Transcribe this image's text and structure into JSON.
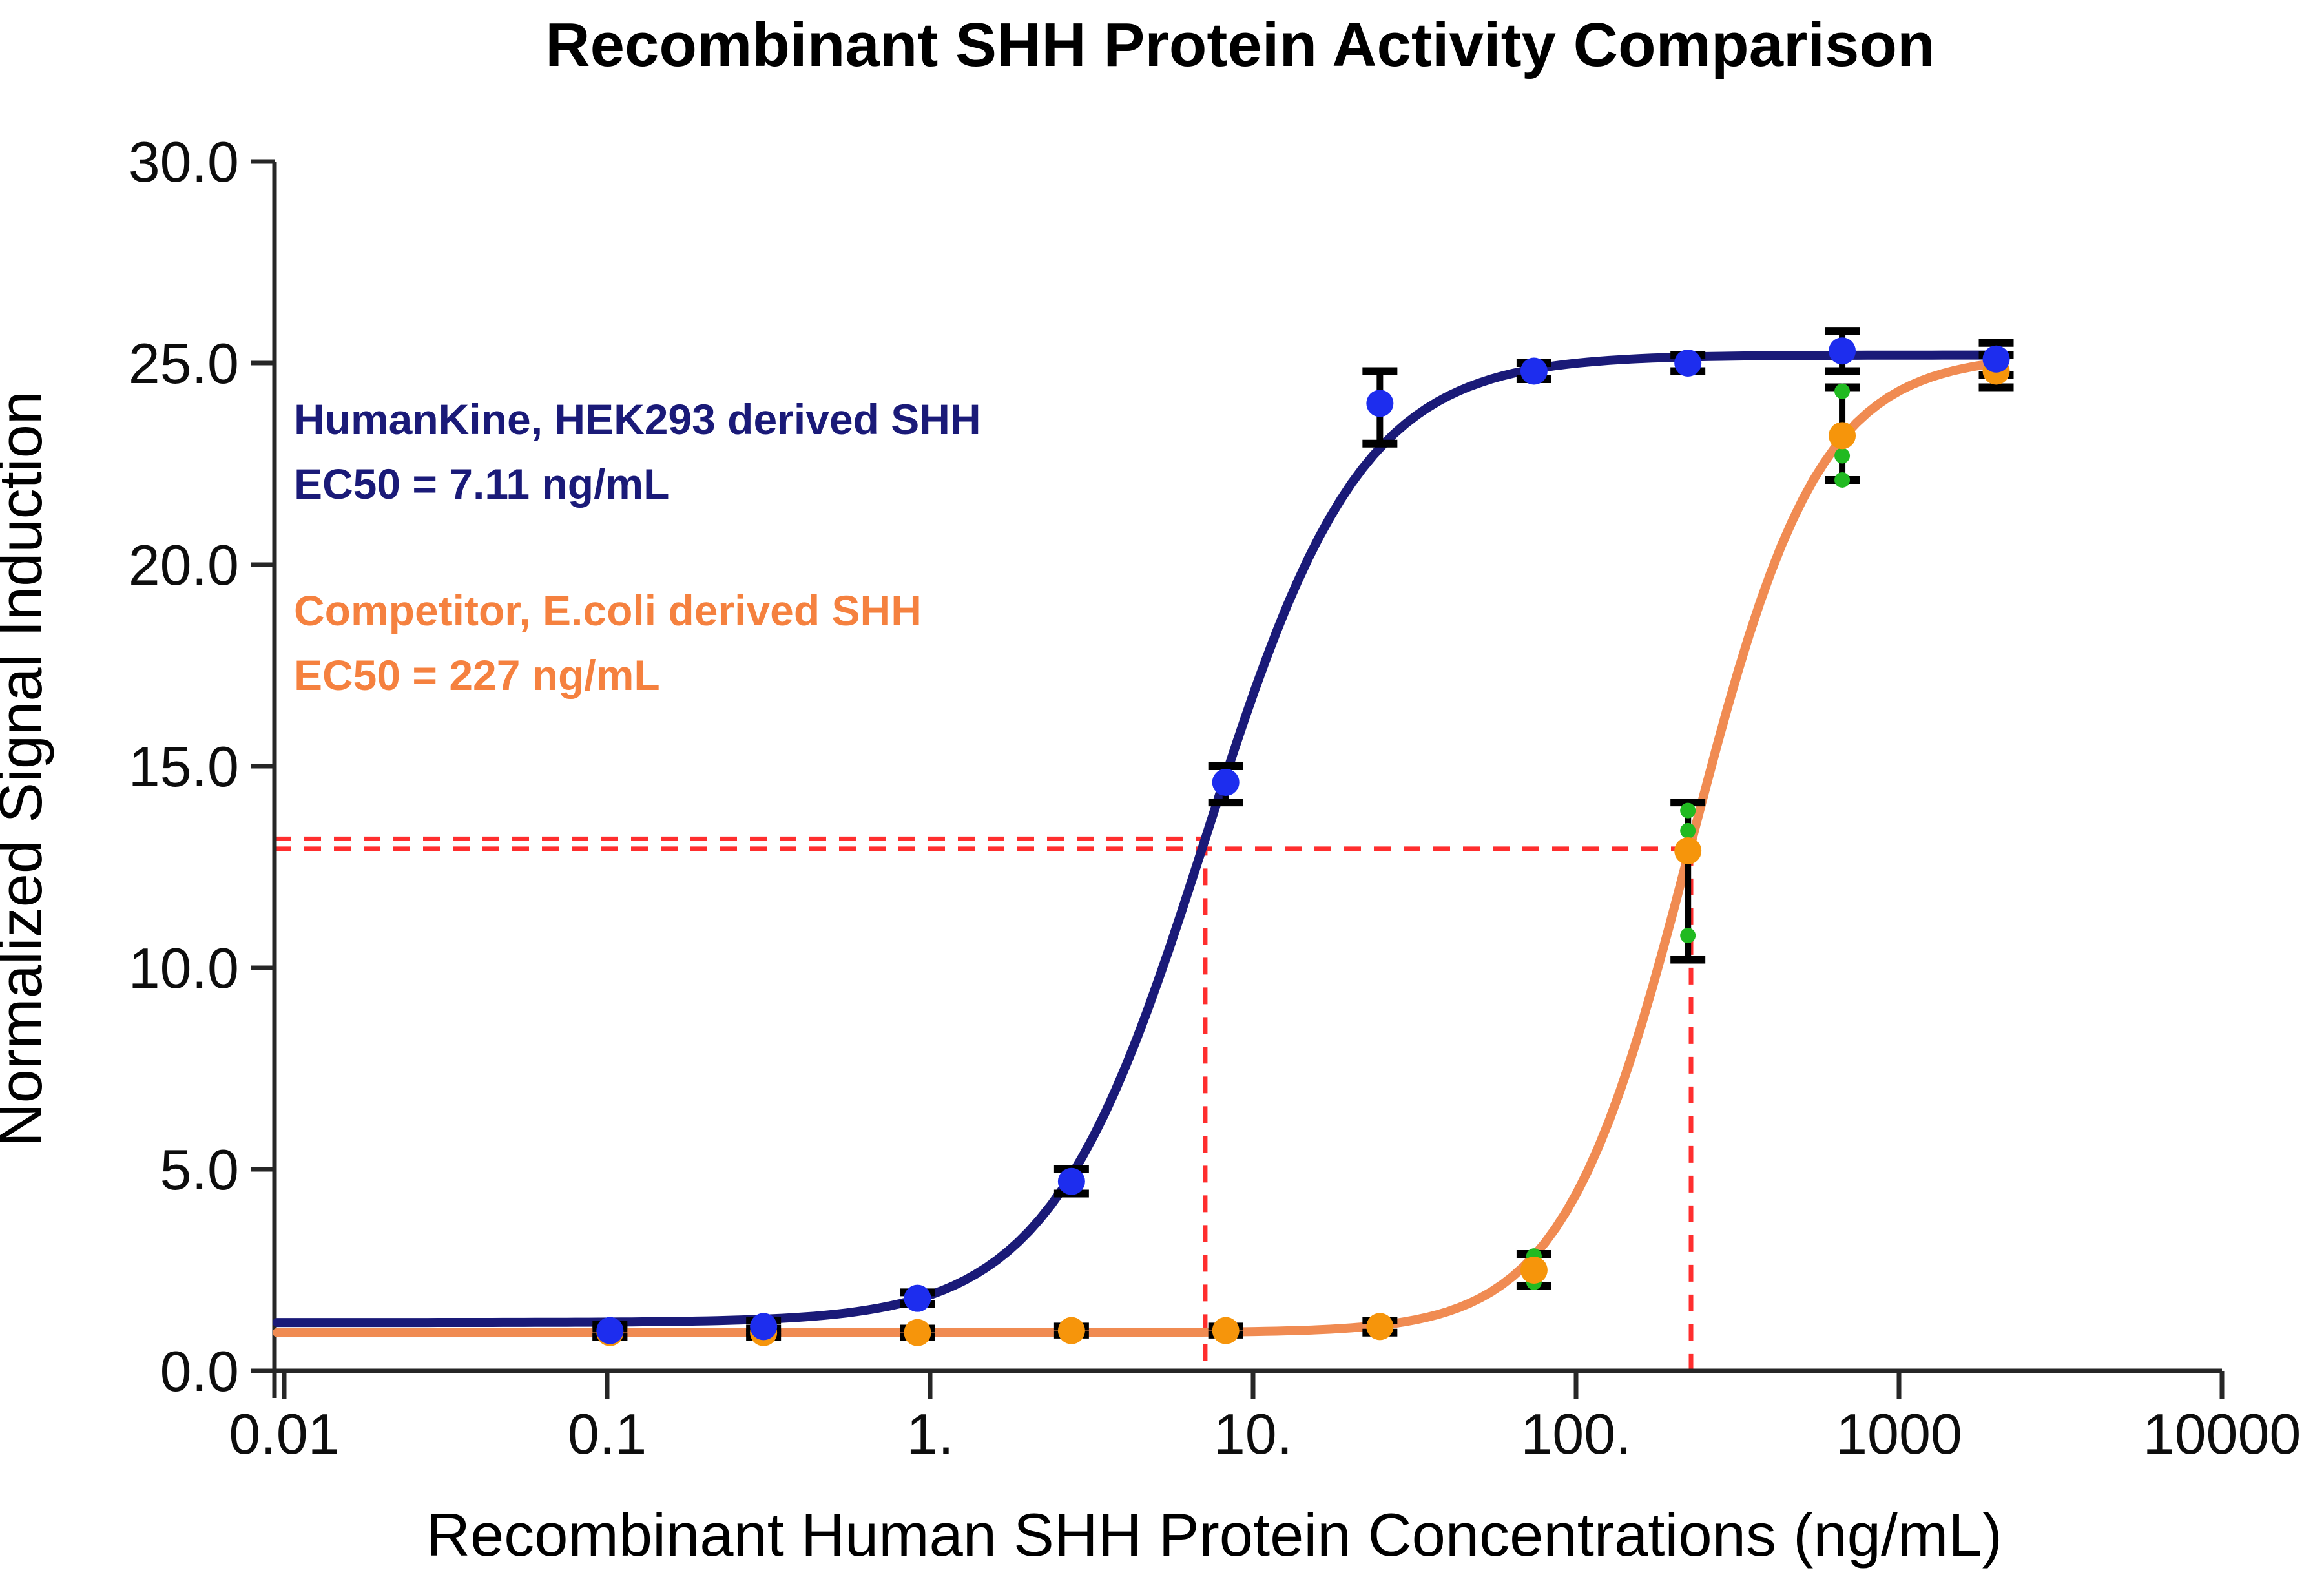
{
  "title": "Recombinant SHH Protein Activity Comparison",
  "chart_data": {
    "type": "line",
    "title": "Recombinant SHH Protein Activity Comparison",
    "xlabel": "Recombinant Human SHH Protein Concentrations (ng/mL)",
    "ylabel": "Normalized Signal Induction",
    "x_scale": "log",
    "xlim": [
      0.01,
      10000
    ],
    "ylim": [
      0.0,
      30.0
    ],
    "grid": false,
    "legend_position": "annotations-upper-left",
    "axis_color": "#262626",
    "guide_color": "#FF2E2E",
    "error_bar_color": "#000000",
    "x_ticks": [
      {
        "value": 0.01,
        "label": "0.01"
      },
      {
        "value": 0.1,
        "label": "0.1"
      },
      {
        "value": 1,
        "label": "1."
      },
      {
        "value": 10,
        "label": "10."
      },
      {
        "value": 100,
        "label": "100."
      },
      {
        "value": 1000,
        "label": "1000"
      },
      {
        "value": 10000,
        "label": "10000"
      }
    ],
    "y_ticks": [
      {
        "value": 0,
        "label": "0.0"
      },
      {
        "value": 5,
        "label": "5.0"
      },
      {
        "value": 10,
        "label": "10.0"
      },
      {
        "value": 15,
        "label": "15.0"
      },
      {
        "value": 20,
        "label": "20.0"
      },
      {
        "value": 25,
        "label": "25.0"
      },
      {
        "value": 30,
        "label": "30.0"
      }
    ],
    "series": [
      {
        "name": "HumanKine, HEK293 derived SHH",
        "ec50_label": "EC50 = 7.11 ng/mL",
        "ec50_ng_ml": 7.11,
        "curve_color": "#1A1A78",
        "marker_color": "#1D2DEE",
        "text_color": "#1A1A78",
        "fit": {
          "bottom": 1.2,
          "top": 25.2,
          "ec50": 7.11,
          "hill": 1.8
        },
        "points": {
          "x": [
            0.102,
            0.305,
            0.914,
            2.74,
            8.23,
            24.7,
            74.1,
            222,
            667,
            2000
          ],
          "y": [
            1.0,
            1.1,
            1.8,
            4.7,
            14.6,
            24.0,
            24.8,
            25.0,
            25.3,
            25.1
          ],
          "err_lo": [
            0.85,
            0.95,
            1.65,
            4.4,
            14.1,
            23.0,
            24.6,
            24.8,
            24.8,
            24.7
          ],
          "err_hi": [
            1.15,
            1.25,
            1.95,
            5.0,
            15.0,
            24.8,
            25.0,
            25.2,
            25.8,
            25.5
          ]
        }
      },
      {
        "name": "Competitor, E.coli derived SHH",
        "ec50_label": "EC50 = 227 ng/mL",
        "ec50_ng_ml": 227,
        "curve_color": "#F08B52",
        "marker_color": "#F6950B",
        "text_color": "#F5813F",
        "replicate_color": "#21BA21",
        "fit": {
          "bottom": 0.95,
          "top": 25.2,
          "ec50": 227,
          "hill": 2.2
        },
        "points": {
          "x": [
            0.102,
            0.305,
            0.914,
            2.74,
            8.23,
            24.7,
            74.1,
            222,
            667,
            2000
          ],
          "y": [
            0.95,
            0.95,
            0.95,
            1.0,
            1.0,
            1.1,
            2.5,
            12.9,
            23.2,
            24.8
          ],
          "err_lo": [
            0.85,
            0.85,
            0.85,
            0.9,
            0.9,
            0.95,
            2.1,
            10.2,
            22.1,
            24.4
          ],
          "err_hi": [
            1.05,
            1.05,
            1.05,
            1.1,
            1.1,
            1.25,
            2.9,
            14.1,
            24.4,
            25.2
          ]
        },
        "replicates": [
          {
            "x": 74.1,
            "values": [
              2.2,
              2.85
            ]
          },
          {
            "x": 222,
            "values": [
              13.9,
              13.4,
              10.8
            ]
          },
          {
            "x": 667,
            "values": [
              24.3,
              22.7,
              22.1
            ]
          }
        ]
      }
    ],
    "guides": [
      {
        "series": "HumanKine, HEK293 derived SHH",
        "half_max": 13.2,
        "ec50": 7.11
      },
      {
        "series": "Competitor, E.coli derived SHH",
        "half_max": 12.95,
        "ec50": 227
      }
    ]
  }
}
